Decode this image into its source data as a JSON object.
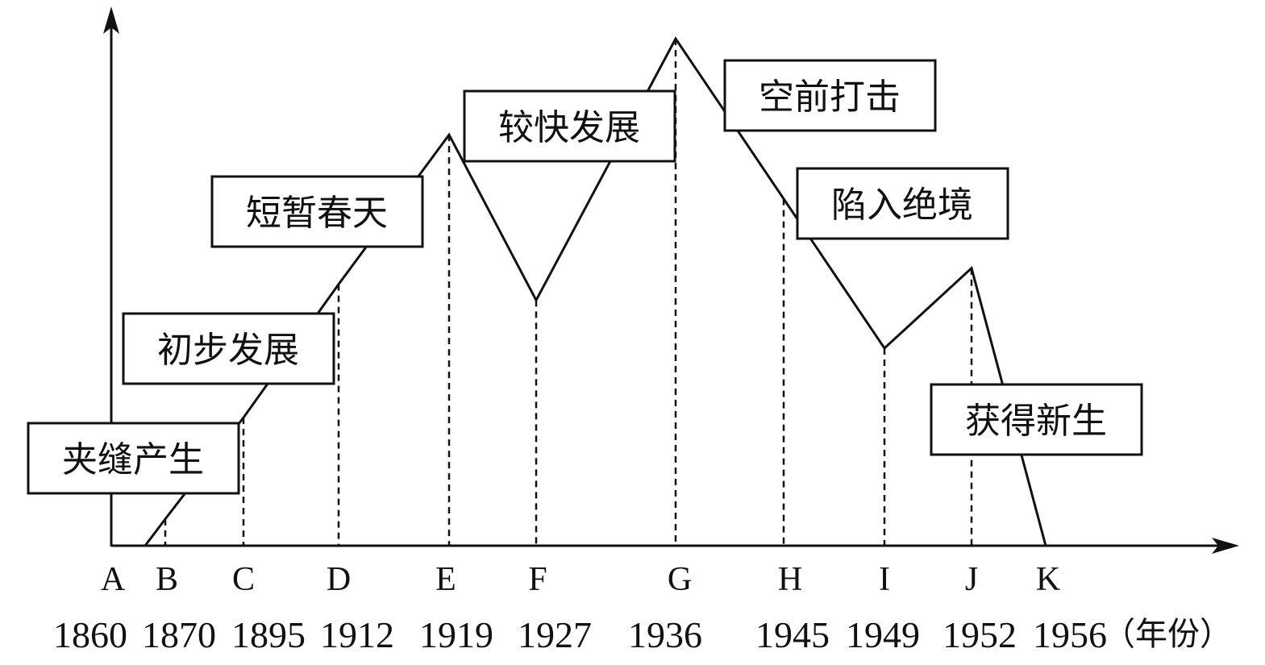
{
  "chart_data": {
    "type": "line",
    "title": "",
    "xlabel": "",
    "ylabel": "",
    "x_unit": "（年份）",
    "categories": [
      "A",
      "B",
      "C",
      "D",
      "E",
      "F",
      "G",
      "H",
      "I",
      "J",
      "K"
    ],
    "years": [
      "1860",
      "1870",
      "1895",
      "1912",
      "1919",
      "1927",
      "1936",
      "1945",
      "1949",
      "1952",
      "1956"
    ],
    "series": [
      {
        "values": [
          null,
          5,
          24,
          49,
          77,
          46,
          95,
          65,
          37,
          52,
          0
        ]
      }
    ],
    "line_start": {
      "between": [
        "A",
        "B"
      ],
      "value": 0
    },
    "ylim": [
      0,
      100
    ],
    "grid": false,
    "y_ticks_shown": false,
    "annotations": [
      {
        "text": "夹缝产生",
        "period": [
          "A",
          "B"
        ]
      },
      {
        "text": "初步发展",
        "period": [
          "B",
          "C"
        ]
      },
      {
        "text": "短暂春天",
        "period": [
          "C",
          "D"
        ]
      },
      {
        "text": "较快发展",
        "period": [
          "E",
          "F"
        ]
      },
      {
        "text": "空前打击",
        "period": [
          "G",
          "H"
        ]
      },
      {
        "text": "陷入绝境",
        "period": [
          "H",
          "I"
        ]
      },
      {
        "text": "获得新生",
        "period": [
          "J",
          "K"
        ]
      }
    ],
    "line_color": "#111111"
  }
}
